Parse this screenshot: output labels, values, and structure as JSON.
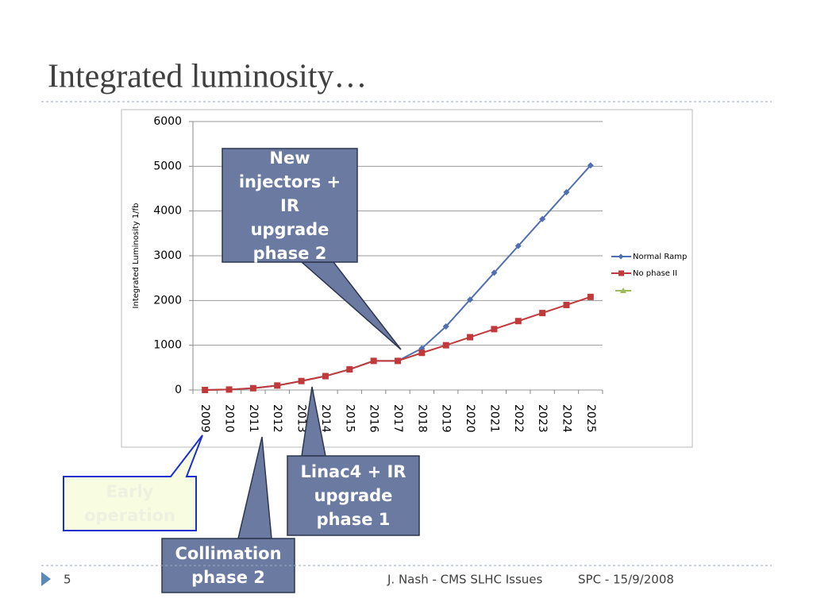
{
  "title": "Integrated luminosity…",
  "chart_data": {
    "type": "line",
    "y_label": "Integrated Luminosity 1/fb",
    "categories": [
      "2009",
      "2010",
      "2011",
      "2012",
      "2013",
      "2014",
      "2015",
      "2016",
      "2017",
      "2018",
      "2019",
      "2020",
      "2021",
      "2022",
      "2023",
      "2024",
      "2025"
    ],
    "series": [
      {
        "name": "Normal Ramp",
        "color": "#4f6fb0",
        "values": [
          0,
          10,
          40,
          100,
          200,
          310,
          460,
          650,
          650,
          930,
          1420,
          2020,
          2620,
          3220,
          3820,
          4420,
          5020
        ]
      },
      {
        "name": "No phase II",
        "color": "#c0393b",
        "values": [
          0,
          10,
          40,
          100,
          200,
          310,
          460,
          650,
          650,
          830,
          1000,
          1180,
          1360,
          1540,
          1720,
          1900,
          2080
        ]
      }
    ],
    "ylim": [
      0,
      6000
    ],
    "yticks": [
      0,
      1000,
      2000,
      3000,
      4000,
      5000,
      6000
    ],
    "grid": true,
    "legend": "right"
  },
  "annotations": [
    "New injectors + IR upgrade phase 2",
    "Linac4 + IR upgrade phase 1",
    "Collimation phase 2",
    "Early operation"
  ],
  "footer": {
    "page": "5",
    "author": "J. Nash - CMS SLHC Issues",
    "date": "SPC - 15/9/2008"
  }
}
